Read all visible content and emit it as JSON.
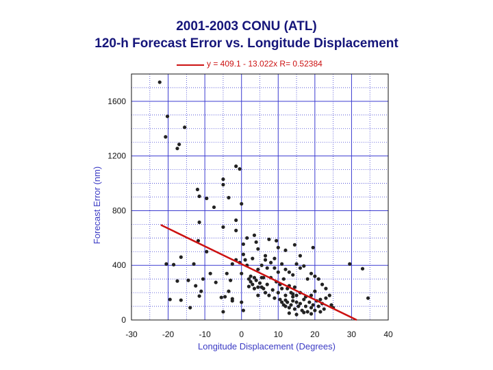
{
  "title_line1": "2001-2003 CONU (ATL)",
  "title_line2": "120-h Forecast Error vs. Longitude Displacement",
  "legend_text": "y = 409.1 - 13.022x   R= 0.52384",
  "colors": {
    "title": "#15157a",
    "axis_label": "#3a3ac4",
    "fit_line": "#cc1111",
    "points": "#222222",
    "grid": "#3b3bd0"
  },
  "chart_data": {
    "type": "scatter",
    "title": "2001-2003 CONU (ATL) 120-h Forecast Error vs. Longitude Displacement",
    "xlabel": "Longitude Displacement (Degrees)",
    "ylabel": "Forecast Error (nm)",
    "xlim": [
      -30,
      40
    ],
    "ylim": [
      0,
      1800
    ],
    "x_ticks": [
      -30,
      -20,
      -10,
      0,
      10,
      20,
      30,
      40
    ],
    "y_ticks": [
      0,
      400,
      800,
      1200,
      1600
    ],
    "x_tick_labels": [
      "-30",
      "-20",
      "-10",
      "0",
      "10",
      "20",
      "30",
      "40"
    ],
    "y_tick_labels": [
      "0",
      "400",
      "800",
      "1200",
      "1600"
    ],
    "grid": true,
    "legend_position": "top",
    "fit_line": {
      "intercept": 409.1,
      "slope": -13.022,
      "x_range": [
        -22,
        31.4
      ],
      "label": "y = 409.1 - 13.022x   R= 0.52384"
    },
    "points": [
      [
        -22.3,
        1740
      ],
      [
        -20.2,
        1490
      ],
      [
        -20.7,
        1340
      ],
      [
        -15.5,
        1410
      ],
      [
        -17.5,
        1255
      ],
      [
        -17.0,
        1285
      ],
      [
        -1.5,
        1125
      ],
      [
        -0.5,
        1105
      ],
      [
        -12.0,
        955
      ],
      [
        -11.5,
        905
      ],
      [
        -9.5,
        890
      ],
      [
        -7.5,
        825
      ],
      [
        -5.0,
        990
      ],
      [
        -5.0,
        1030
      ],
      [
        0.0,
        850
      ],
      [
        -3.5,
        895
      ],
      [
        -1.5,
        730
      ],
      [
        -11.5,
        715
      ],
      [
        -5.0,
        680
      ],
      [
        -1.5,
        655
      ],
      [
        -11.8,
        580
      ],
      [
        -9.5,
        500
      ],
      [
        -16.5,
        460
      ],
      [
        -20.5,
        410
      ],
      [
        -18.5,
        405
      ],
      [
        -13.0,
        410
      ],
      [
        -14.5,
        290
      ],
      [
        -17.5,
        285
      ],
      [
        -12.5,
        250
      ],
      [
        -10.5,
        300
      ],
      [
        -8.5,
        340
      ],
      [
        -19.5,
        150
      ],
      [
        -16.5,
        145
      ],
      [
        -14.0,
        90
      ],
      [
        -11.5,
        175
      ],
      [
        -11.0,
        210
      ],
      [
        -7.0,
        275
      ],
      [
        -5.5,
        165
      ],
      [
        -4.5,
        170
      ],
      [
        -4.0,
        340
      ],
      [
        -3.0,
        290
      ],
      [
        -3.5,
        210
      ],
      [
        -2.5,
        155
      ],
      [
        -2.5,
        140
      ],
      [
        -5.0,
        60
      ],
      [
        0.5,
        70
      ],
      [
        0.0,
        130
      ],
      [
        2.0,
        245
      ],
      [
        2.5,
        320
      ],
      [
        -2.5,
        410
      ],
      [
        -1.5,
        440
      ],
      [
        -0.5,
        420
      ],
      [
        0.5,
        480
      ],
      [
        1.0,
        440
      ],
      [
        1.5,
        400
      ],
      [
        0.0,
        340
      ],
      [
        1.5,
        600
      ],
      [
        0.5,
        555
      ],
      [
        3.5,
        620
      ],
      [
        4.0,
        570
      ],
      [
        4.5,
        520
      ],
      [
        6.5,
        470
      ],
      [
        7.5,
        590
      ],
      [
        9.0,
        450
      ],
      [
        9.5,
        580
      ],
      [
        10.0,
        530
      ],
      [
        12.0,
        510
      ],
      [
        14.5,
        550
      ],
      [
        16.0,
        470
      ],
      [
        19.5,
        530
      ],
      [
        3.0,
        450
      ],
      [
        4.5,
        370
      ],
      [
        5.5,
        400
      ],
      [
        6.5,
        440
      ],
      [
        7.0,
        380
      ],
      [
        8.0,
        420
      ],
      [
        9.0,
        380
      ],
      [
        10.0,
        350
      ],
      [
        11.0,
        410
      ],
      [
        12.0,
        370
      ],
      [
        13.0,
        350
      ],
      [
        14.0,
        330
      ],
      [
        15.0,
        410
      ],
      [
        16.0,
        380
      ],
      [
        17.0,
        395
      ],
      [
        18.0,
        300
      ],
      [
        19.0,
        340
      ],
      [
        20.0,
        320
      ],
      [
        21.0,
        300
      ],
      [
        22.0,
        260
      ],
      [
        23.0,
        230
      ],
      [
        24.0,
        180
      ],
      [
        2.0,
        300
      ],
      [
        2.5,
        280
      ],
      [
        3.0,
        260
      ],
      [
        3.5,
        310
      ],
      [
        4.0,
        290
      ],
      [
        4.5,
        240
      ],
      [
        5.0,
        270
      ],
      [
        5.5,
        310
      ],
      [
        6.0,
        230
      ],
      [
        6.5,
        200
      ],
      [
        7.0,
        260
      ],
      [
        7.5,
        180
      ],
      [
        8.0,
        310
      ],
      [
        8.5,
        220
      ],
      [
        9.0,
        160
      ],
      [
        9.5,
        280
      ],
      [
        10.0,
        200
      ],
      [
        10.5,
        260
      ],
      [
        11.0,
        230
      ],
      [
        11.5,
        300
      ],
      [
        12.0,
        180
      ],
      [
        12.5,
        230
      ],
      [
        13.0,
        250
      ],
      [
        13.5,
        200
      ],
      [
        14.0,
        190
      ],
      [
        14.5,
        240
      ],
      [
        3.5,
        230
      ],
      [
        4.5,
        180
      ],
      [
        5.5,
        240
      ],
      [
        6.0,
        310
      ],
      [
        10.5,
        150
      ],
      [
        11.0,
        130
      ],
      [
        11.5,
        110
      ],
      [
        12.0,
        100
      ],
      [
        12.5,
        130
      ],
      [
        13.0,
        90
      ],
      [
        13.5,
        110
      ],
      [
        14.0,
        140
      ],
      [
        14.5,
        80
      ],
      [
        15.0,
        130
      ],
      [
        15.5,
        100
      ],
      [
        16.0,
        120
      ],
      [
        16.5,
        70
      ],
      [
        17.0,
        150
      ],
      [
        17.5,
        100
      ],
      [
        18.0,
        60
      ],
      [
        18.5,
        130
      ],
      [
        19.0,
        90
      ],
      [
        19.5,
        110
      ],
      [
        20.0,
        70
      ],
      [
        20.5,
        140
      ],
      [
        21.0,
        100
      ],
      [
        21.5,
        60
      ],
      [
        22.0,
        120
      ],
      [
        22.5,
        80
      ],
      [
        23.0,
        160
      ],
      [
        24.5,
        110
      ],
      [
        25.0,
        90
      ],
      [
        15.0,
        180
      ],
      [
        16.0,
        200
      ],
      [
        17.5,
        170
      ],
      [
        19.0,
        180
      ],
      [
        20.0,
        210
      ],
      [
        21.5,
        150
      ],
      [
        13.0,
        50
      ],
      [
        15.0,
        40
      ],
      [
        17.0,
        55
      ],
      [
        19.0,
        45
      ],
      [
        14.0,
        170
      ],
      [
        12.0,
        145
      ],
      [
        29.5,
        410
      ],
      [
        33.0,
        375
      ],
      [
        34.5,
        160
      ]
    ]
  }
}
